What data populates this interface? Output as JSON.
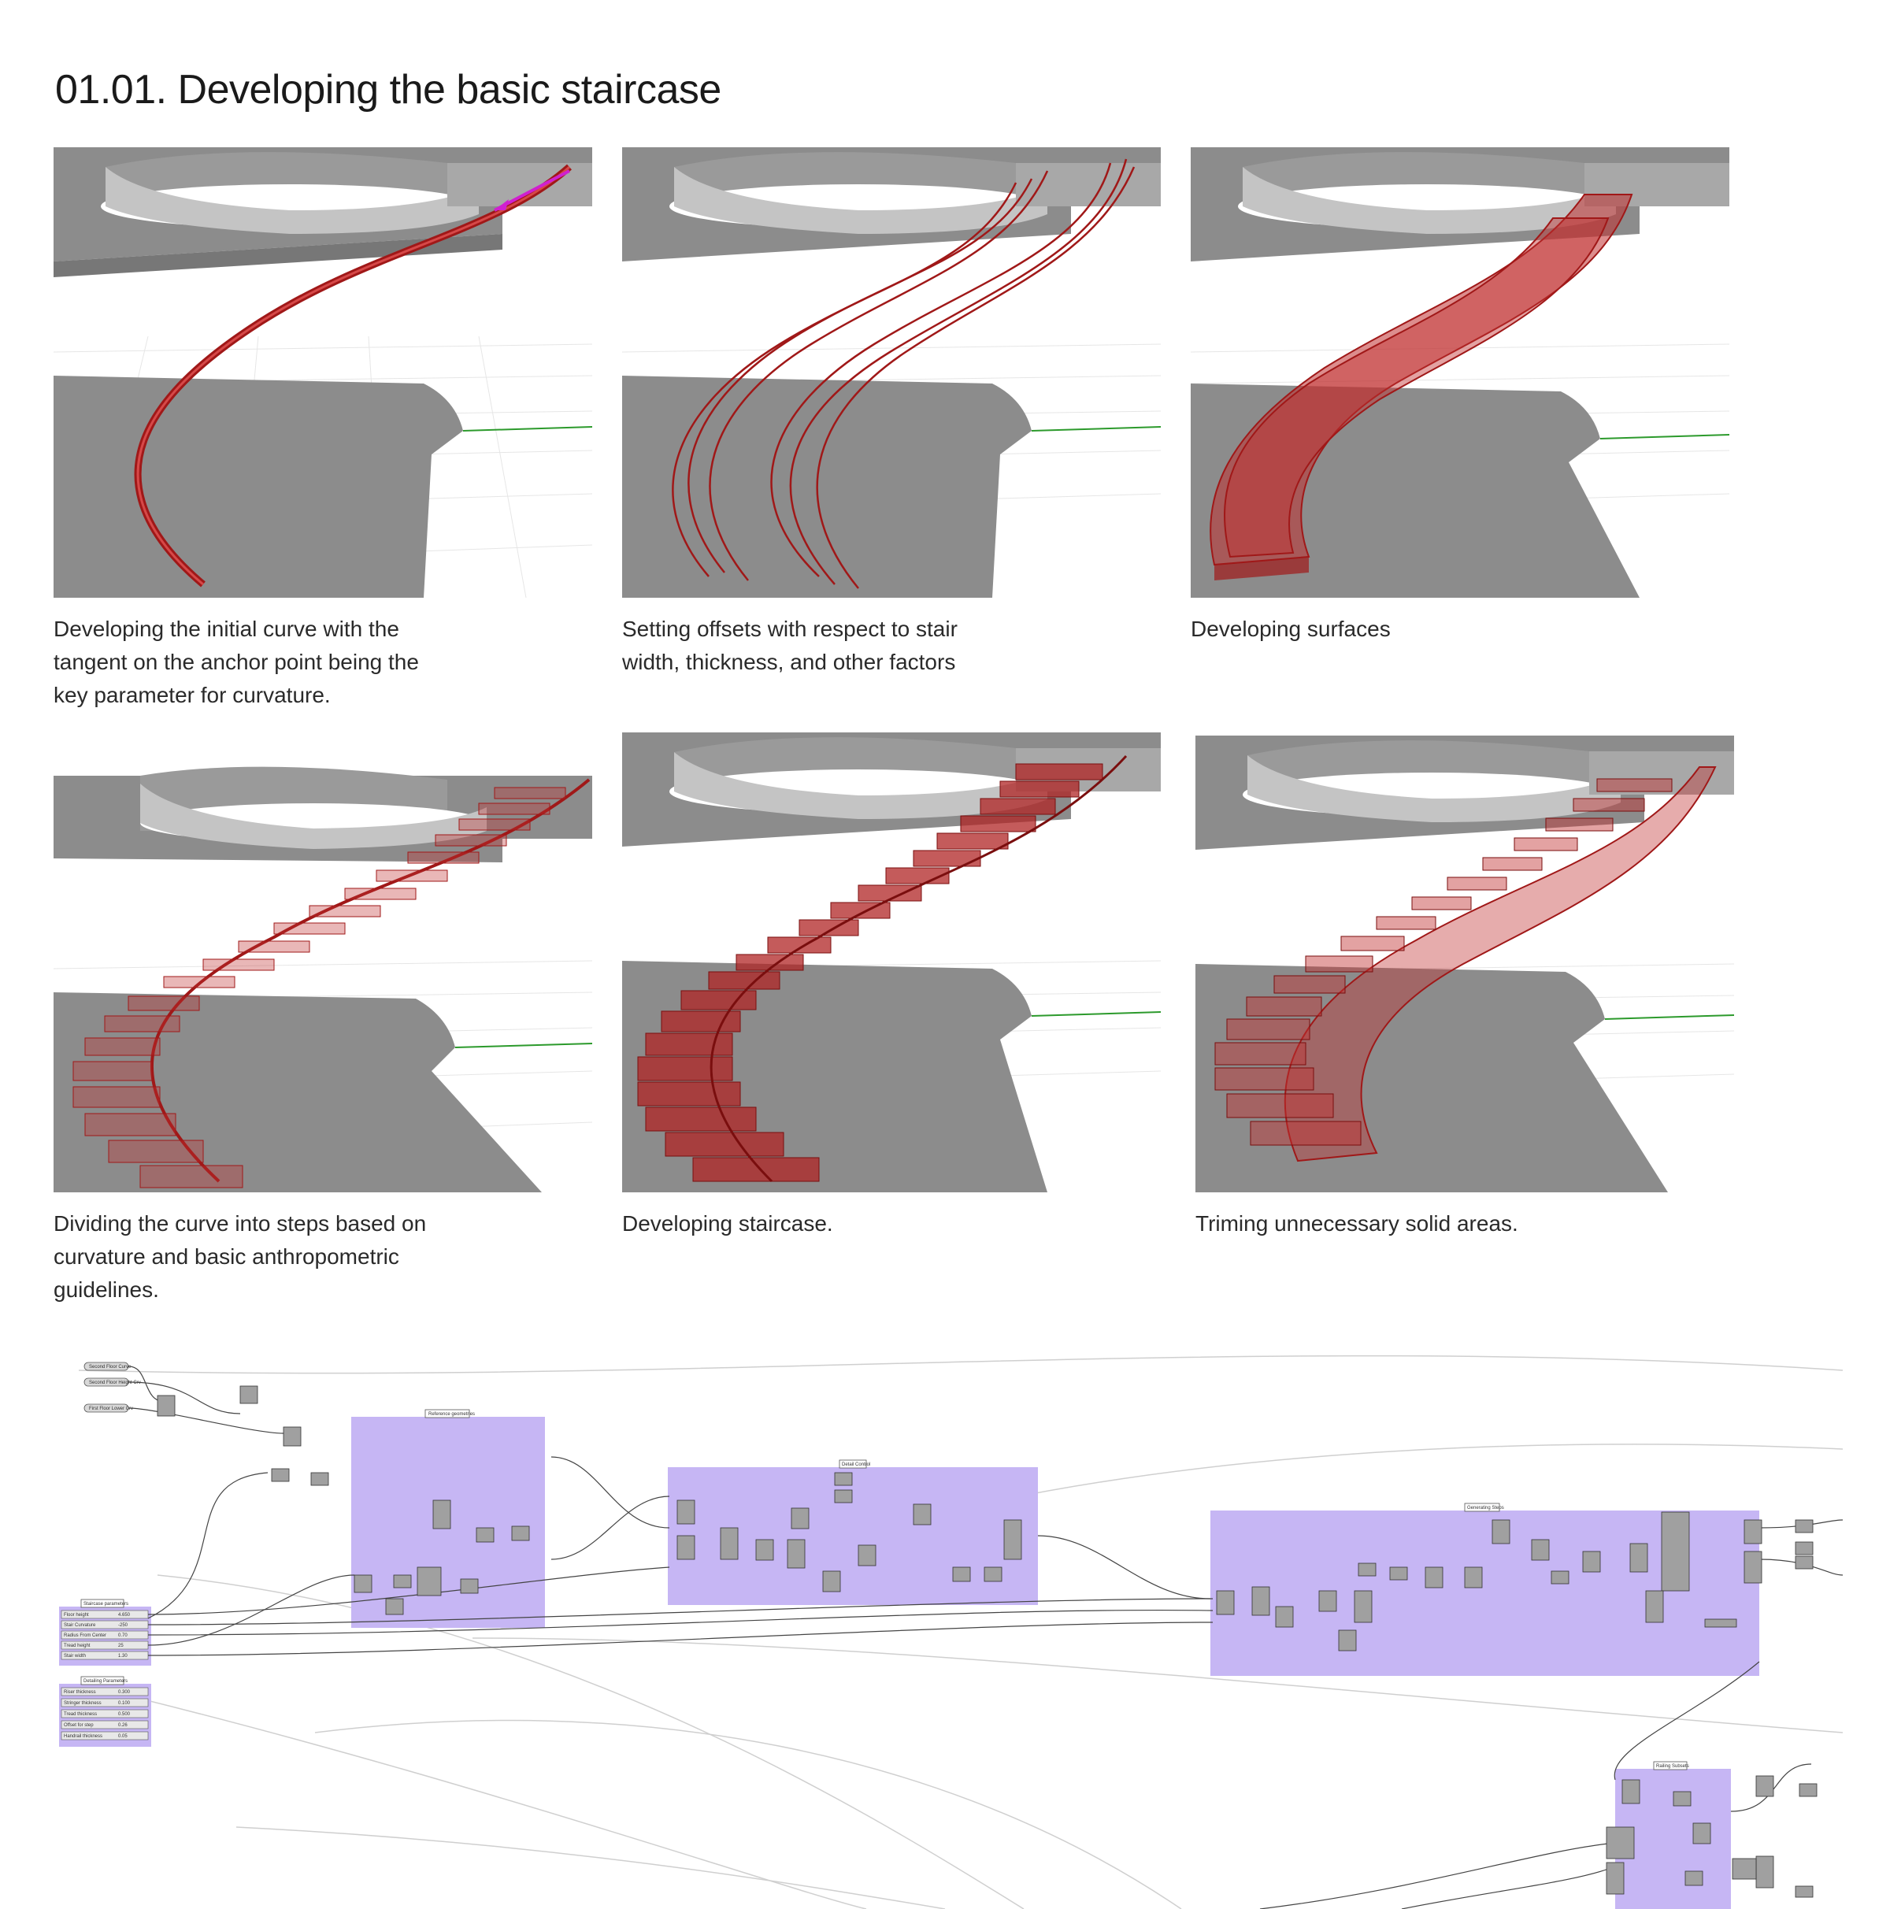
{
  "title": "01.01. Developing the basic staircase",
  "panels": [
    {
      "id": "initial-curve",
      "caption_lines": [
        "Developing the initial curve with the",
        "tangent on the anchor point being the",
        "key parameter for curvature."
      ]
    },
    {
      "id": "offsets",
      "caption_lines": [
        "Setting offsets with respect to stair",
        "width, thickness, and other factors"
      ]
    },
    {
      "id": "surfaces",
      "caption_lines": [
        "Developing surfaces"
      ]
    },
    {
      "id": "dividing",
      "caption_lines": [
        "Dividing the curve into steps based on",
        "curvature and basic anthropometric",
        "guidelines."
      ]
    },
    {
      "id": "staircase",
      "caption_lines": [
        "Developing staircase."
      ]
    },
    {
      "id": "trimming",
      "caption_lines": [
        "Triming unnecessary solid areas."
      ]
    }
  ],
  "colors": {
    "slab_top": "#8c8c8c",
    "slab_side": "#b4b4b4",
    "stair_red": "#a01818",
    "stair_fill": "#c03030",
    "tangent_arrow": "#d020d0",
    "group_purple": "#c6b6f4",
    "axis_green": "#2c9a2c"
  },
  "graph": {
    "group_labels": [
      "Reference geometries",
      "Detail Control",
      "Generating Steps",
      "Railing Subsets",
      "Staircase parameters",
      "Detailing Parameters"
    ],
    "input_params": [
      "Second Floor Curve",
      "Second Floor Height Crv",
      "First Floor Lower Crv"
    ],
    "sliders_a": [
      {
        "label": "Floor height",
        "value": "4.650"
      },
      {
        "label": "Stair Curvature",
        "value": "-250"
      },
      {
        "label": "Radius From Center",
        "value": "0.70"
      },
      {
        "label": "Tread height",
        "value": "25"
      },
      {
        "label": "Stair width",
        "value": "1.30"
      }
    ],
    "sliders_b": [
      {
        "label": "Riser thickness",
        "value": "0.300"
      },
      {
        "label": "Stringer thickness",
        "value": "0.100"
      },
      {
        "label": "Tread thickness",
        "value": "0.500"
      },
      {
        "label": "Offset for step",
        "value": "0.26"
      },
      {
        "label": "Handrail thickness",
        "value": "0.05"
      }
    ]
  }
}
